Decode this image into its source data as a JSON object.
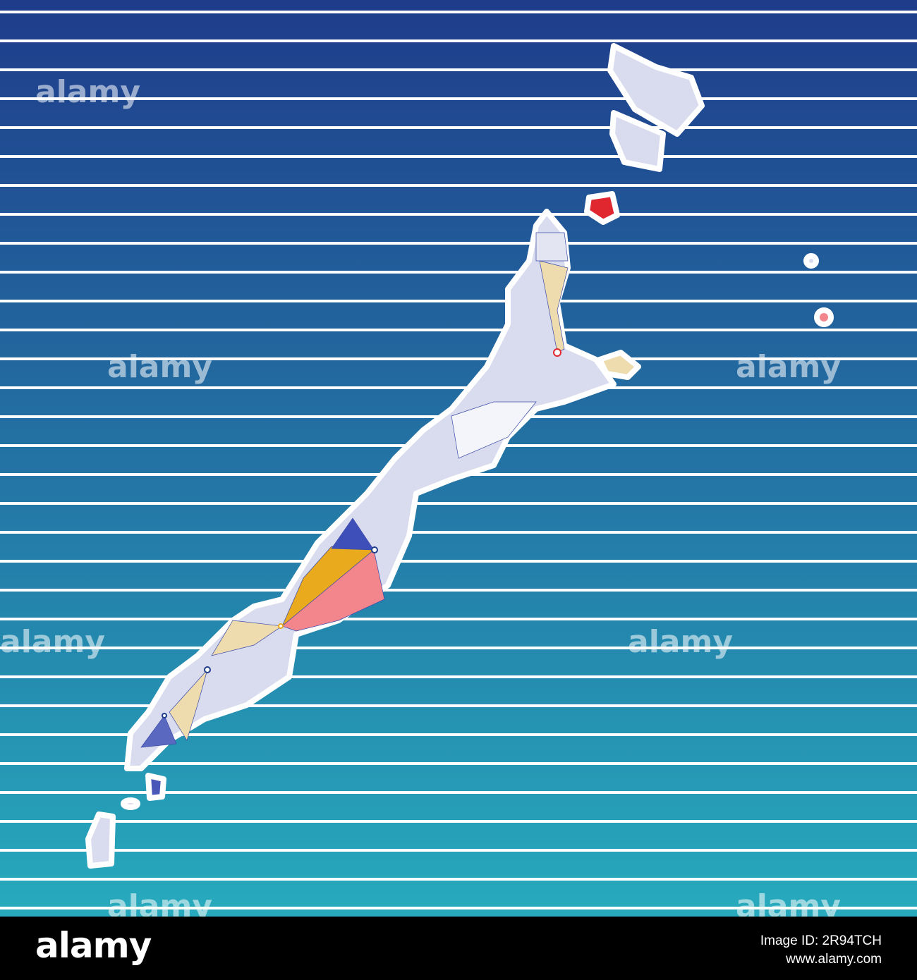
{
  "watermark": "alamy",
  "footer": {
    "logo": "alamy",
    "image_id": "Image ID: 2R94TCH",
    "url": "www.alamy.com"
  }
}
